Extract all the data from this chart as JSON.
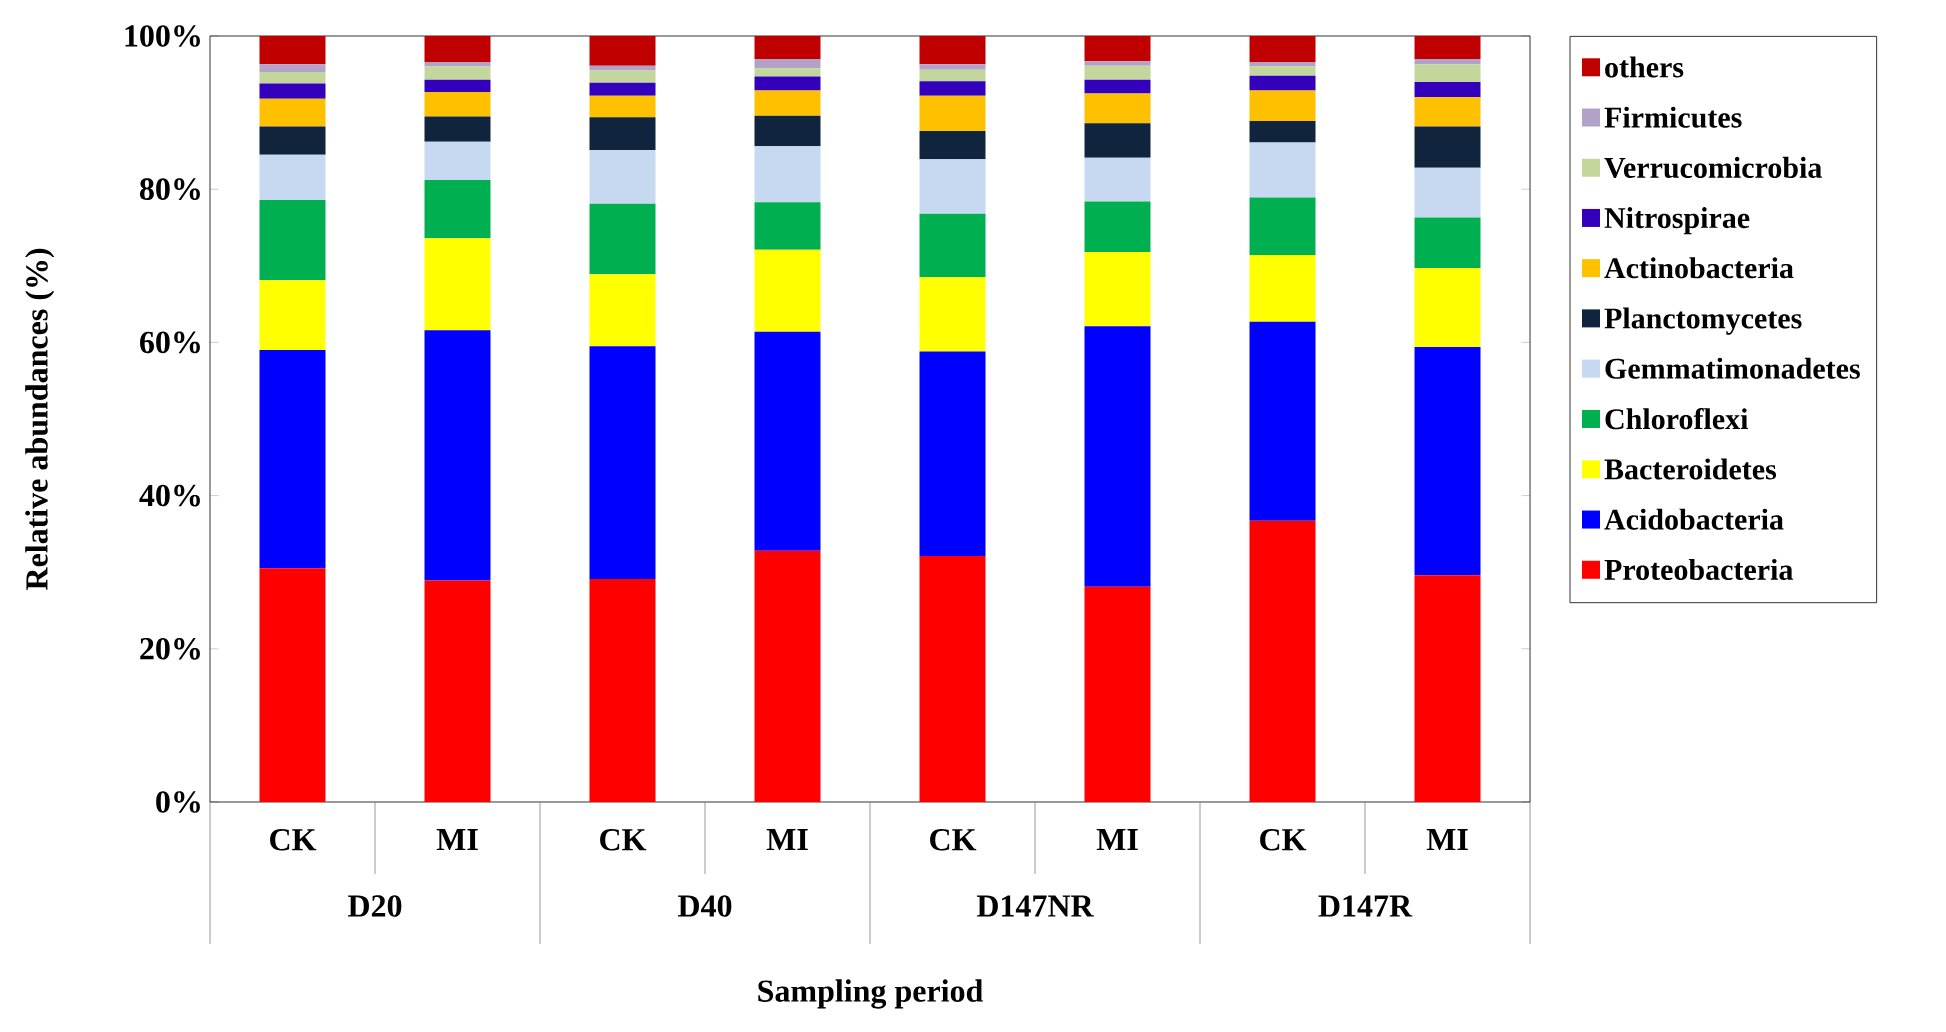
{
  "chart_data": {
    "type": "bar",
    "stacked": true,
    "xlabel": "Sampling period",
    "ylabel": "Relative abundances (%)",
    "categories": [
      "CK",
      "MI",
      "CK",
      "MI",
      "CK",
      "MI",
      "CK",
      "MI"
    ],
    "annotations": [
      "D20",
      "D40",
      "D147NR",
      "D147R"
    ],
    "ylim": [
      0,
      100
    ],
    "yticks": [
      {
        "value": 0,
        "label": "0%"
      },
      {
        "value": 20,
        "label": "20%"
      },
      {
        "value": 40,
        "label": "40%"
      },
      {
        "value": 60,
        "label": "60%"
      },
      {
        "value": 80,
        "label": "80%"
      },
      {
        "value": 100,
        "label": "100%"
      }
    ],
    "legend": "right",
    "grid": false,
    "series": [
      {
        "name": "Proteobacteria",
        "color": "#ff0000",
        "values": [
          30.5,
          28.9,
          29.1,
          32.8,
          32.1,
          28.1,
          36.7,
          29.6
        ]
      },
      {
        "name": "Acidobacteria",
        "color": "#0000ff",
        "values": [
          28.5,
          32.7,
          30.4,
          28.6,
          26.7,
          34.0,
          26.0,
          29.8
        ]
      },
      {
        "name": "Bacteroidetes",
        "color": "#ffff00",
        "values": [
          9.1,
          12.0,
          9.4,
          10.7,
          9.7,
          9.7,
          8.7,
          10.3
        ]
      },
      {
        "name": "Chloroflexi",
        "color": "#00b050",
        "values": [
          10.5,
          7.6,
          9.2,
          6.2,
          8.3,
          6.6,
          7.5,
          6.6
        ]
      },
      {
        "name": "Gemmatimonadetes",
        "color": "#c6d9f1",
        "values": [
          5.9,
          5.0,
          7.0,
          7.3,
          7.1,
          5.7,
          7.2,
          6.5
        ]
      },
      {
        "name": "Planctomycetes",
        "color": "#10243e",
        "values": [
          3.7,
          3.3,
          4.3,
          4.0,
          3.7,
          4.5,
          2.8,
          5.4
        ]
      },
      {
        "name": "Actinobacteria",
        "color": "#ffc000",
        "values": [
          3.6,
          3.2,
          2.8,
          3.3,
          4.6,
          3.9,
          4.0,
          3.8
        ]
      },
      {
        "name": "Nitrospirae",
        "color": "#3300bb",
        "values": [
          2.0,
          1.6,
          1.7,
          1.8,
          1.9,
          1.8,
          1.9,
          2.0
        ]
      },
      {
        "name": "Verrucomicrobia",
        "color": "#c3d69b",
        "values": [
          1.5,
          1.7,
          1.6,
          1.1,
          1.5,
          1.8,
          1.2,
          2.3
        ]
      },
      {
        "name": "Firmicutes",
        "color": "#b3a2c7",
        "values": [
          1.0,
          0.6,
          0.6,
          1.2,
          0.7,
          0.6,
          0.6,
          0.7
        ]
      },
      {
        "name": "others",
        "color": "#c00000",
        "values": [
          3.7,
          3.4,
          3.9,
          3.0,
          3.7,
          3.3,
          3.4,
          3.0
        ]
      }
    ]
  }
}
